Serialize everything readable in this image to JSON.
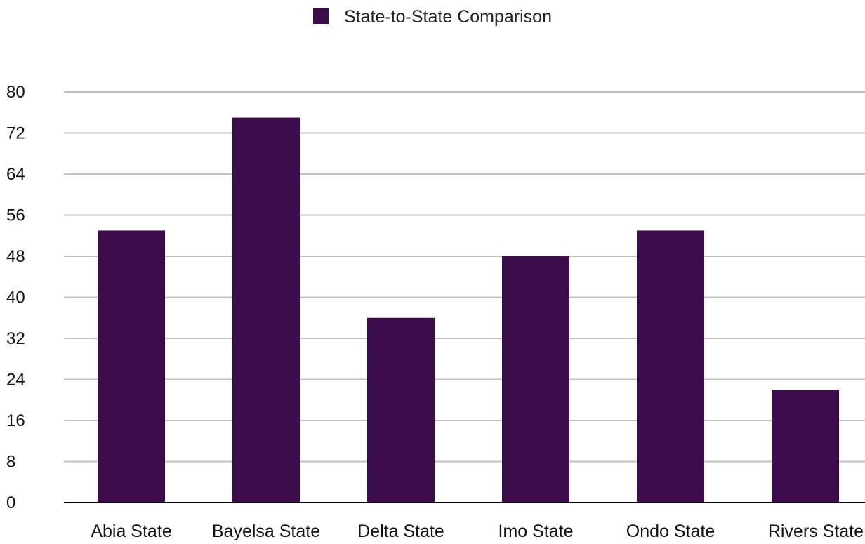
{
  "chart_data": {
    "type": "bar",
    "categories": [
      "Abia State",
      "Bayelsa State",
      "Delta State",
      "Imo State",
      "Ondo State",
      "Rivers State"
    ],
    "series": [
      {
        "name": "State-to-State Comparison",
        "values": [
          53,
          75,
          36,
          48,
          53,
          22
        ],
        "color": "#3d0c4a"
      }
    ],
    "ylim": [
      0,
      80
    ],
    "yticks": [
      0,
      8,
      16,
      24,
      32,
      40,
      48,
      56,
      64,
      72,
      80
    ],
    "grid": true,
    "legend_position": "top-center",
    "title": "",
    "xlabel": "",
    "ylabel": ""
  },
  "colors": {
    "gridline": "#c0c0c0",
    "axis": "#000000"
  }
}
